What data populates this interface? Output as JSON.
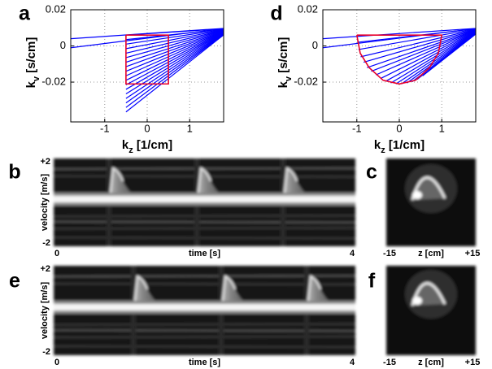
{
  "chart_data": [
    {
      "type": "line",
      "label": "a",
      "xlabel": [
        "k",
        "z",
        " [1/cm]"
      ],
      "ylabel": [
        "k",
        "v",
        " [s/cm]"
      ],
      "xlim": [
        -1.8,
        1.8
      ],
      "ylim": [
        -0.042,
        0.02
      ],
      "xticks": [
        -1,
        0,
        1
      ],
      "yticks": [
        -0.02,
        0,
        0.02
      ],
      "grid": true,
      "color": "#0000ff",
      "series": [
        {
          "x": [
            -1.8,
            1.8
          ],
          "values": [
            0.004,
            0.0097
          ]
        },
        {
          "x": [
            -1.8,
            1.8
          ],
          "values": [
            -0.001,
            0.0096
          ]
        },
        {
          "x": [
            -0.5,
            1.8
          ],
          "values": [
            0.006,
            0.0095
          ]
        },
        {
          "x": [
            -0.5,
            1.8
          ],
          "values": [
            0.0035,
            0.0093
          ]
        },
        {
          "x": [
            -0.5,
            1.8
          ],
          "values": [
            0.001,
            0.0091
          ]
        },
        {
          "x": [
            -0.5,
            1.8
          ],
          "values": [
            -0.0015,
            0.0089
          ]
        },
        {
          "x": [
            -0.5,
            1.8
          ],
          "values": [
            -0.004,
            0.0087
          ]
        },
        {
          "x": [
            -0.5,
            1.8
          ],
          "values": [
            -0.0065,
            0.0085
          ]
        },
        {
          "x": [
            -0.5,
            1.8
          ],
          "values": [
            -0.009,
            0.0083
          ]
        },
        {
          "x": [
            -0.5,
            1.8
          ],
          "values": [
            -0.0115,
            0.0081
          ]
        },
        {
          "x": [
            -0.5,
            1.8
          ],
          "values": [
            -0.014,
            0.0079
          ]
        },
        {
          "x": [
            -0.5,
            1.8
          ],
          "values": [
            -0.0165,
            0.0077
          ]
        },
        {
          "x": [
            -0.5,
            1.8
          ],
          "values": [
            -0.019,
            0.0075
          ]
        },
        {
          "x": [
            -0.5,
            1.8
          ],
          "values": [
            -0.0215,
            0.0073
          ]
        },
        {
          "x": [
            -0.5,
            1.8
          ],
          "values": [
            -0.024,
            0.0071
          ]
        },
        {
          "x": [
            -0.5,
            1.8
          ],
          "values": [
            -0.0265,
            0.0069
          ]
        },
        {
          "x": [
            -0.5,
            1.8
          ],
          "values": [
            -0.029,
            0.0067
          ]
        },
        {
          "x": [
            -0.5,
            1.8
          ],
          "values": [
            -0.0315,
            0.0065
          ]
        },
        {
          "x": [
            -0.5,
            1.8
          ],
          "values": [
            -0.034,
            0.0063
          ]
        },
        {
          "x": [
            -0.5,
            1.8
          ],
          "values": [
            -0.0365,
            0.0061
          ]
        }
      ],
      "outline": {
        "color": "#e8002a",
        "x": [
          -0.5,
          0.5,
          0.5,
          -0.5,
          -0.5
        ],
        "values": [
          0.006,
          0.006,
          -0.021,
          -0.021,
          0.006
        ]
      }
    },
    {
      "type": "line",
      "label": "d",
      "xlabel": [
        "k",
        "z",
        " [1/cm]"
      ],
      "ylabel": [
        "k",
        "v",
        " [s/cm]"
      ],
      "xlim": [
        -1.8,
        1.8
      ],
      "ylim": [
        -0.042,
        0.02
      ],
      "xticks": [
        -1,
        0,
        1
      ],
      "yticks": [
        -0.02,
        0,
        0.02
      ],
      "grid": true,
      "color": "#0000ff",
      "series": [
        {
          "x": [
            -1.8,
            1.8
          ],
          "values": [
            0.004,
            0.0097
          ]
        },
        {
          "x": [
            -1.8,
            1.8
          ],
          "values": [
            -0.001,
            0.0096
          ]
        },
        {
          "x": [
            -0.99,
            1.8
          ],
          "values": [
            0.002,
            0.0095
          ]
        },
        {
          "x": [
            -0.96,
            1.8
          ],
          "values": [
            -0.002,
            0.0093
          ]
        },
        {
          "x": [
            -0.91,
            1.8
          ],
          "values": [
            -0.006,
            0.0091
          ]
        },
        {
          "x": [
            -0.84,
            1.8
          ],
          "values": [
            -0.009,
            0.0089
          ]
        },
        {
          "x": [
            -0.76,
            1.8
          ],
          "values": [
            -0.012,
            0.0087
          ]
        },
        {
          "x": [
            -0.66,
            1.8
          ],
          "values": [
            -0.014,
            0.0085
          ]
        },
        {
          "x": [
            -0.55,
            1.8
          ],
          "values": [
            -0.016,
            0.0083
          ]
        },
        {
          "x": [
            -0.44,
            1.8
          ],
          "values": [
            -0.018,
            0.0081
          ]
        },
        {
          "x": [
            -0.32,
            1.8
          ],
          "values": [
            -0.0195,
            0.0079
          ]
        },
        {
          "x": [
            -0.2,
            1.8
          ],
          "values": [
            -0.0205,
            0.0077
          ]
        },
        {
          "x": [
            -0.08,
            1.8
          ],
          "values": [
            -0.021,
            0.0075
          ]
        },
        {
          "x": [
            0.05,
            1.8
          ],
          "values": [
            -0.021,
            0.0073
          ]
        },
        {
          "x": [
            0.18,
            1.8
          ],
          "values": [
            -0.0205,
            0.0071
          ]
        },
        {
          "x": [
            0.3,
            1.8
          ],
          "values": [
            -0.0198,
            0.0069
          ]
        },
        {
          "x": [
            0.42,
            1.8
          ],
          "values": [
            -0.0185,
            0.0067
          ]
        },
        {
          "x": [
            0.55,
            1.8
          ],
          "values": [
            -0.0165,
            0.0065
          ]
        }
      ],
      "outline": {
        "color": "#e8002a",
        "x": [
          -1,
          -0.92,
          -0.71,
          -0.38,
          0,
          0.38,
          0.71,
          0.92,
          1,
          1,
          -1
        ],
        "values": [
          0.006,
          -0.004,
          -0.012,
          -0.019,
          -0.021,
          -0.019,
          -0.012,
          -0.004,
          0.006,
          0.006,
          0.006
        ]
      }
    },
    {
      "type": "image",
      "label": "b",
      "xlabel": "time [s]",
      "ylabel": "velocity [m/s]",
      "xlim": [
        0,
        4
      ],
      "ylim": [
        -2,
        2
      ],
      "xticks": [
        0,
        4
      ],
      "yticks": [
        {
          "value": 2,
          "label": "+2"
        },
        -2
      ]
    },
    {
      "type": "image",
      "label": "c",
      "xlabel": "z [cm]",
      "xlim": [
        -15,
        15
      ],
      "xticks": [
        -15,
        {
          "value": 15,
          "label": "+15"
        }
      ]
    },
    {
      "type": "image",
      "label": "e",
      "xlabel": "time [s]",
      "ylabel": "velocity [m/s]",
      "xlim": [
        0,
        4
      ],
      "ylim": [
        -2,
        2
      ],
      "xticks": [
        0,
        4
      ],
      "yticks": [
        {
          "value": 2,
          "label": "+2"
        },
        -2
      ]
    },
    {
      "type": "image",
      "label": "f",
      "xlabel": "z [cm]",
      "xlim": [
        -15,
        15
      ],
      "xticks": [
        -15,
        {
          "value": 15,
          "label": "+15"
        }
      ]
    }
  ]
}
